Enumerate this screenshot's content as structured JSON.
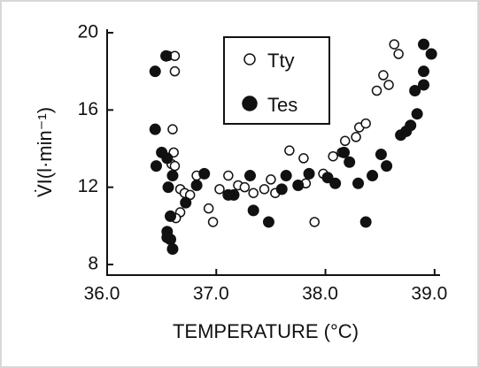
{
  "chart_data": {
    "type": "scatter",
    "x_label": "TEMPERATURE (°C)",
    "y_label": "V̇I(l·min⁻¹)",
    "xlim": [
      36.0,
      39.05
    ],
    "xticks": [
      {
        "value": 36.0,
        "label": "36.0"
      },
      {
        "value": 37.0,
        "label": "37.0"
      },
      {
        "value": 38.0,
        "label": "38.0"
      },
      {
        "value": 39.0,
        "label": "39.0"
      }
    ],
    "ylim": [
      7.45,
      20.0
    ],
    "yticks": [
      8,
      12,
      16,
      20
    ],
    "legend": "top-center",
    "series": [
      {
        "name": "Tty",
        "color": "#111111",
        "marker": "open",
        "x": [
          36.56,
          36.62,
          36.62,
          36.6,
          36.61,
          36.59,
          36.62,
          36.67,
          36.71,
          36.76,
          36.82,
          36.67,
          36.63,
          36.93,
          36.97,
          37.03,
          37.11,
          37.2,
          37.26,
          37.34,
          37.44,
          37.5,
          37.54,
          37.67,
          37.8,
          37.82,
          37.9,
          37.98,
          38.07,
          38.15,
          38.18,
          38.28,
          38.31,
          38.37,
          38.47,
          38.53,
          38.58,
          38.63,
          38.67
        ],
        "y": [
          18.8,
          18.8,
          18.0,
          15.0,
          13.8,
          13.2,
          13.1,
          11.9,
          11.7,
          11.6,
          12.6,
          10.7,
          10.4,
          10.9,
          10.2,
          11.9,
          12.6,
          12.1,
          12.0,
          11.7,
          11.9,
          12.4,
          11.7,
          13.9,
          13.5,
          12.2,
          10.2,
          12.7,
          13.6,
          13.8,
          14.4,
          14.6,
          15.1,
          15.3,
          17.0,
          17.8,
          17.3,
          19.4,
          18.9
        ]
      },
      {
        "name": "Tes",
        "color": "#111111",
        "marker": "filled",
        "x": [
          36.44,
          36.54,
          36.44,
          36.5,
          36.45,
          36.55,
          36.56,
          36.6,
          36.58,
          36.55,
          36.58,
          36.6,
          36.55,
          36.72,
          36.82,
          36.89,
          37.11,
          37.16,
          37.31,
          37.34,
          37.48,
          37.6,
          37.64,
          37.75,
          37.85,
          38.02,
          38.09,
          38.17,
          38.22,
          38.3,
          38.37,
          38.43,
          38.51,
          38.56,
          38.69,
          38.74,
          38.78,
          38.84,
          38.82,
          38.9,
          38.9,
          38.97,
          38.9
        ],
        "y": [
          18.0,
          18.8,
          15.0,
          13.8,
          13.1,
          13.5,
          12.0,
          12.6,
          10.5,
          9.7,
          9.3,
          8.8,
          9.4,
          11.2,
          12.1,
          12.7,
          11.6,
          11.6,
          12.6,
          10.8,
          10.2,
          11.9,
          12.6,
          12.1,
          12.7,
          12.5,
          12.2,
          13.8,
          13.3,
          12.2,
          10.2,
          12.6,
          13.7,
          13.1,
          14.7,
          14.9,
          15.2,
          15.8,
          17.0,
          17.3,
          19.4,
          18.9,
          18.0
        ]
      }
    ]
  }
}
